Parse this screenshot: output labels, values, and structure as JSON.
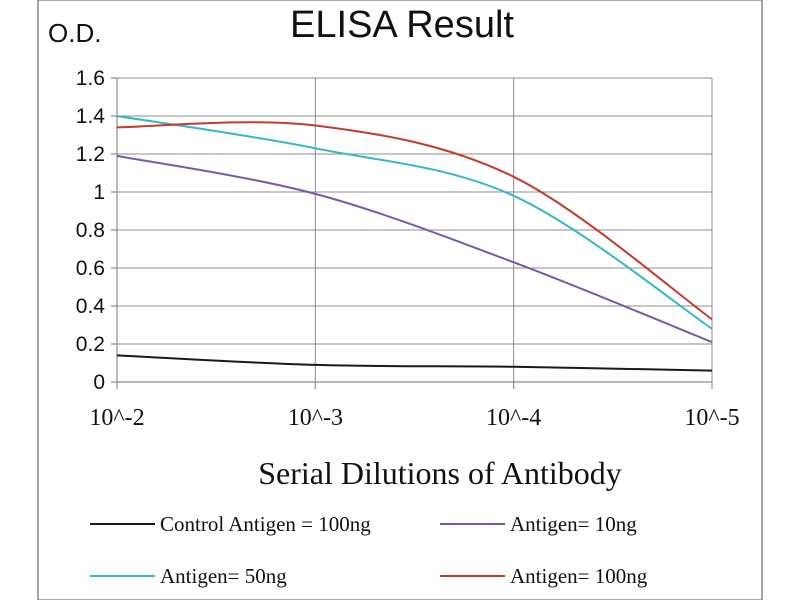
{
  "chart_data": {
    "type": "line",
    "title": "ELISA Result",
    "ylabel": "O.D.",
    "xlabel": "Serial Dilutions  of Antibody",
    "x": [
      0,
      1,
      2,
      3
    ],
    "x_tick_labels": [
      "10^-2",
      "10^-3",
      "10^-4",
      "10^-5"
    ],
    "ylim": [
      0,
      1.6
    ],
    "y_ticks": [
      0,
      0.2,
      0.4,
      0.6,
      0.8,
      1,
      1.2,
      1.4,
      1.6
    ],
    "y_tick_labels": [
      "0",
      "0.2",
      "0.4",
      "0.6",
      "0.8",
      "1",
      "1.2",
      "1.4",
      "1.6"
    ],
    "grid": true,
    "legend_position": "bottom",
    "series": [
      {
        "name": "Control Antigen = 100ng",
        "color": "#1a1a1a",
        "values": [
          0.14,
          0.09,
          0.08,
          0.06
        ]
      },
      {
        "name": "Antigen= 10ng",
        "color": "#7a5aa8",
        "values": [
          1.19,
          0.99,
          0.63,
          0.21
        ]
      },
      {
        "name": "Antigen= 50ng",
        "color": "#35b7c9",
        "values": [
          1.4,
          1.23,
          0.98,
          0.28
        ]
      },
      {
        "name": "Antigen= 100ng",
        "color": "#c43a2b",
        "values": [
          1.34,
          1.35,
          1.08,
          0.33
        ]
      }
    ]
  }
}
